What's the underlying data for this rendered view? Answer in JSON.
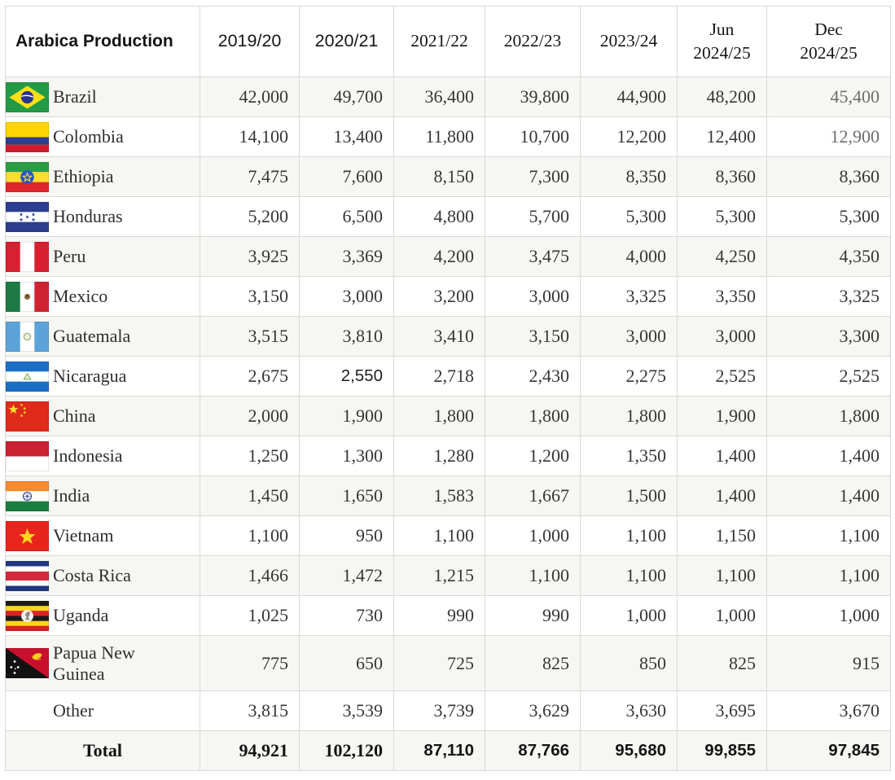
{
  "table": {
    "title": "Arabica Production",
    "columns": [
      "2019/20",
      "2020/21",
      "2021/22",
      "2022/23",
      "2023/24",
      "Jun\n2024/25",
      "Dec\n2024/25"
    ],
    "rows": [
      {
        "country": "Brazil",
        "flag": "brazil-flag-icon",
        "values": [
          "42,000",
          "49,700",
          "36,400",
          "39,800",
          "44,900",
          "48,200",
          "45,400"
        ]
      },
      {
        "country": "Colombia",
        "flag": "colombia-flag-icon",
        "values": [
          "14,100",
          "13,400",
          "11,800",
          "10,700",
          "12,200",
          "12,400",
          "12,900"
        ]
      },
      {
        "country": "Ethiopia",
        "flag": "ethiopia-flag-icon",
        "values": [
          "7,475",
          "7,600",
          "8,150",
          "7,300",
          "8,350",
          "8,360",
          "8,360"
        ]
      },
      {
        "country": "Honduras",
        "flag": "honduras-flag-icon",
        "values": [
          "5,200",
          "6,500",
          "4,800",
          "5,700",
          "5,300",
          "5,300",
          "5,300"
        ]
      },
      {
        "country": "Peru",
        "flag": "peru-flag-icon",
        "values": [
          "3,925",
          "3,369",
          "4,200",
          "3,475",
          "4,000",
          "4,250",
          "4,350"
        ]
      },
      {
        "country": "Mexico",
        "flag": "mexico-flag-icon",
        "values": [
          "3,150",
          "3,000",
          "3,200",
          "3,000",
          "3,325",
          "3,350",
          "3,325"
        ]
      },
      {
        "country": "Guatemala",
        "flag": "guatemala-flag-icon",
        "values": [
          "3,515",
          "3,810",
          "3,410",
          "3,150",
          "3,000",
          "3,000",
          "3,300"
        ]
      },
      {
        "country": "Nicaragua",
        "flag": "nicaragua-flag-icon",
        "values": [
          "2,675",
          "2,550",
          "2,718",
          "2,430",
          "2,275",
          "2,525",
          "2,525"
        ]
      },
      {
        "country": "China",
        "flag": "china-flag-icon",
        "values": [
          "2,000",
          "1,900",
          "1,800",
          "1,800",
          "1,800",
          "1,900",
          "1,800"
        ]
      },
      {
        "country": "Indonesia",
        "flag": "indonesia-flag-icon",
        "values": [
          "1,250",
          "1,300",
          "1,280",
          "1,200",
          "1,350",
          "1,400",
          "1,400"
        ]
      },
      {
        "country": "India",
        "flag": "india-flag-icon",
        "values": [
          "1,450",
          "1,650",
          "1,583",
          "1,667",
          "1,500",
          "1,400",
          "1,400"
        ]
      },
      {
        "country": "Vietnam",
        "flag": "vietnam-flag-icon",
        "values": [
          "1,100",
          "950",
          "1,100",
          "1,000",
          "1,100",
          "1,150",
          "1,100"
        ]
      },
      {
        "country": "Costa Rica",
        "flag": "costa-rica-flag-icon",
        "values": [
          "1,466",
          "1,472",
          "1,215",
          "1,100",
          "1,100",
          "1,100",
          "1,100"
        ]
      },
      {
        "country": "Uganda",
        "flag": "uganda-flag-icon",
        "values": [
          "1,025",
          "730",
          "990",
          "990",
          "1,000",
          "1,000",
          "1,000"
        ]
      },
      {
        "country": "Papua New Guinea",
        "flag": "papua-new-guinea-flag-icon",
        "values": [
          "775",
          "650",
          "725",
          "825",
          "850",
          "825",
          "915"
        ]
      },
      {
        "country": "Other",
        "flag": null,
        "values": [
          "3,815",
          "3,539",
          "3,739",
          "3,629",
          "3,630",
          "3,695",
          "3,670"
        ]
      }
    ],
    "total": {
      "label": "Total",
      "values": [
        "94,921",
        "102,120",
        "87,110",
        "87,766",
        "95,680",
        "99,855",
        "97,845"
      ]
    }
  },
  "chart_data": {
    "type": "table",
    "title": "Arabica Production",
    "categories": [
      "2019/20",
      "2020/21",
      "2021/22",
      "2022/23",
      "2023/24",
      "Jun 2024/25",
      "Dec 2024/25"
    ],
    "series": [
      {
        "name": "Brazil",
        "values": [
          42000,
          49700,
          36400,
          39800,
          44900,
          48200,
          45400
        ]
      },
      {
        "name": "Colombia",
        "values": [
          14100,
          13400,
          11800,
          10700,
          12200,
          12400,
          12900
        ]
      },
      {
        "name": "Ethiopia",
        "values": [
          7475,
          7600,
          8150,
          7300,
          8350,
          8360,
          8360
        ]
      },
      {
        "name": "Honduras",
        "values": [
          5200,
          6500,
          4800,
          5700,
          5300,
          5300,
          5300
        ]
      },
      {
        "name": "Peru",
        "values": [
          3925,
          3369,
          4200,
          3475,
          4000,
          4250,
          4350
        ]
      },
      {
        "name": "Mexico",
        "values": [
          3150,
          3000,
          3200,
          3000,
          3325,
          3350,
          3325
        ]
      },
      {
        "name": "Guatemala",
        "values": [
          3515,
          3810,
          3410,
          3150,
          3000,
          3000,
          3300
        ]
      },
      {
        "name": "Nicaragua",
        "values": [
          2675,
          2550,
          2718,
          2430,
          2275,
          2525,
          2525
        ]
      },
      {
        "name": "China",
        "values": [
          2000,
          1900,
          1800,
          1800,
          1800,
          1900,
          1800
        ]
      },
      {
        "name": "Indonesia",
        "values": [
          1250,
          1300,
          1280,
          1200,
          1350,
          1400,
          1400
        ]
      },
      {
        "name": "India",
        "values": [
          1450,
          1650,
          1583,
          1667,
          1500,
          1400,
          1400
        ]
      },
      {
        "name": "Vietnam",
        "values": [
          1100,
          950,
          1100,
          1000,
          1100,
          1150,
          1100
        ]
      },
      {
        "name": "Costa Rica",
        "values": [
          1466,
          1472,
          1215,
          1100,
          1100,
          1100,
          1100
        ]
      },
      {
        "name": "Uganda",
        "values": [
          1025,
          730,
          990,
          990,
          1000,
          1000,
          1000
        ]
      },
      {
        "name": "Papua New Guinea",
        "values": [
          775,
          650,
          725,
          825,
          850,
          825,
          915
        ]
      },
      {
        "name": "Other",
        "values": [
          3815,
          3539,
          3739,
          3629,
          3630,
          3695,
          3670
        ]
      }
    ],
    "total": {
      "name": "Total",
      "values": [
        94921,
        102120,
        87110,
        87766,
        95680,
        99855,
        97845
      ]
    }
  },
  "colors": {
    "zebra_row": "#f6f6f3",
    "grid_line": "#d9d9d7",
    "body_text": "#363636",
    "muted_text": "#6d6d6d"
  }
}
